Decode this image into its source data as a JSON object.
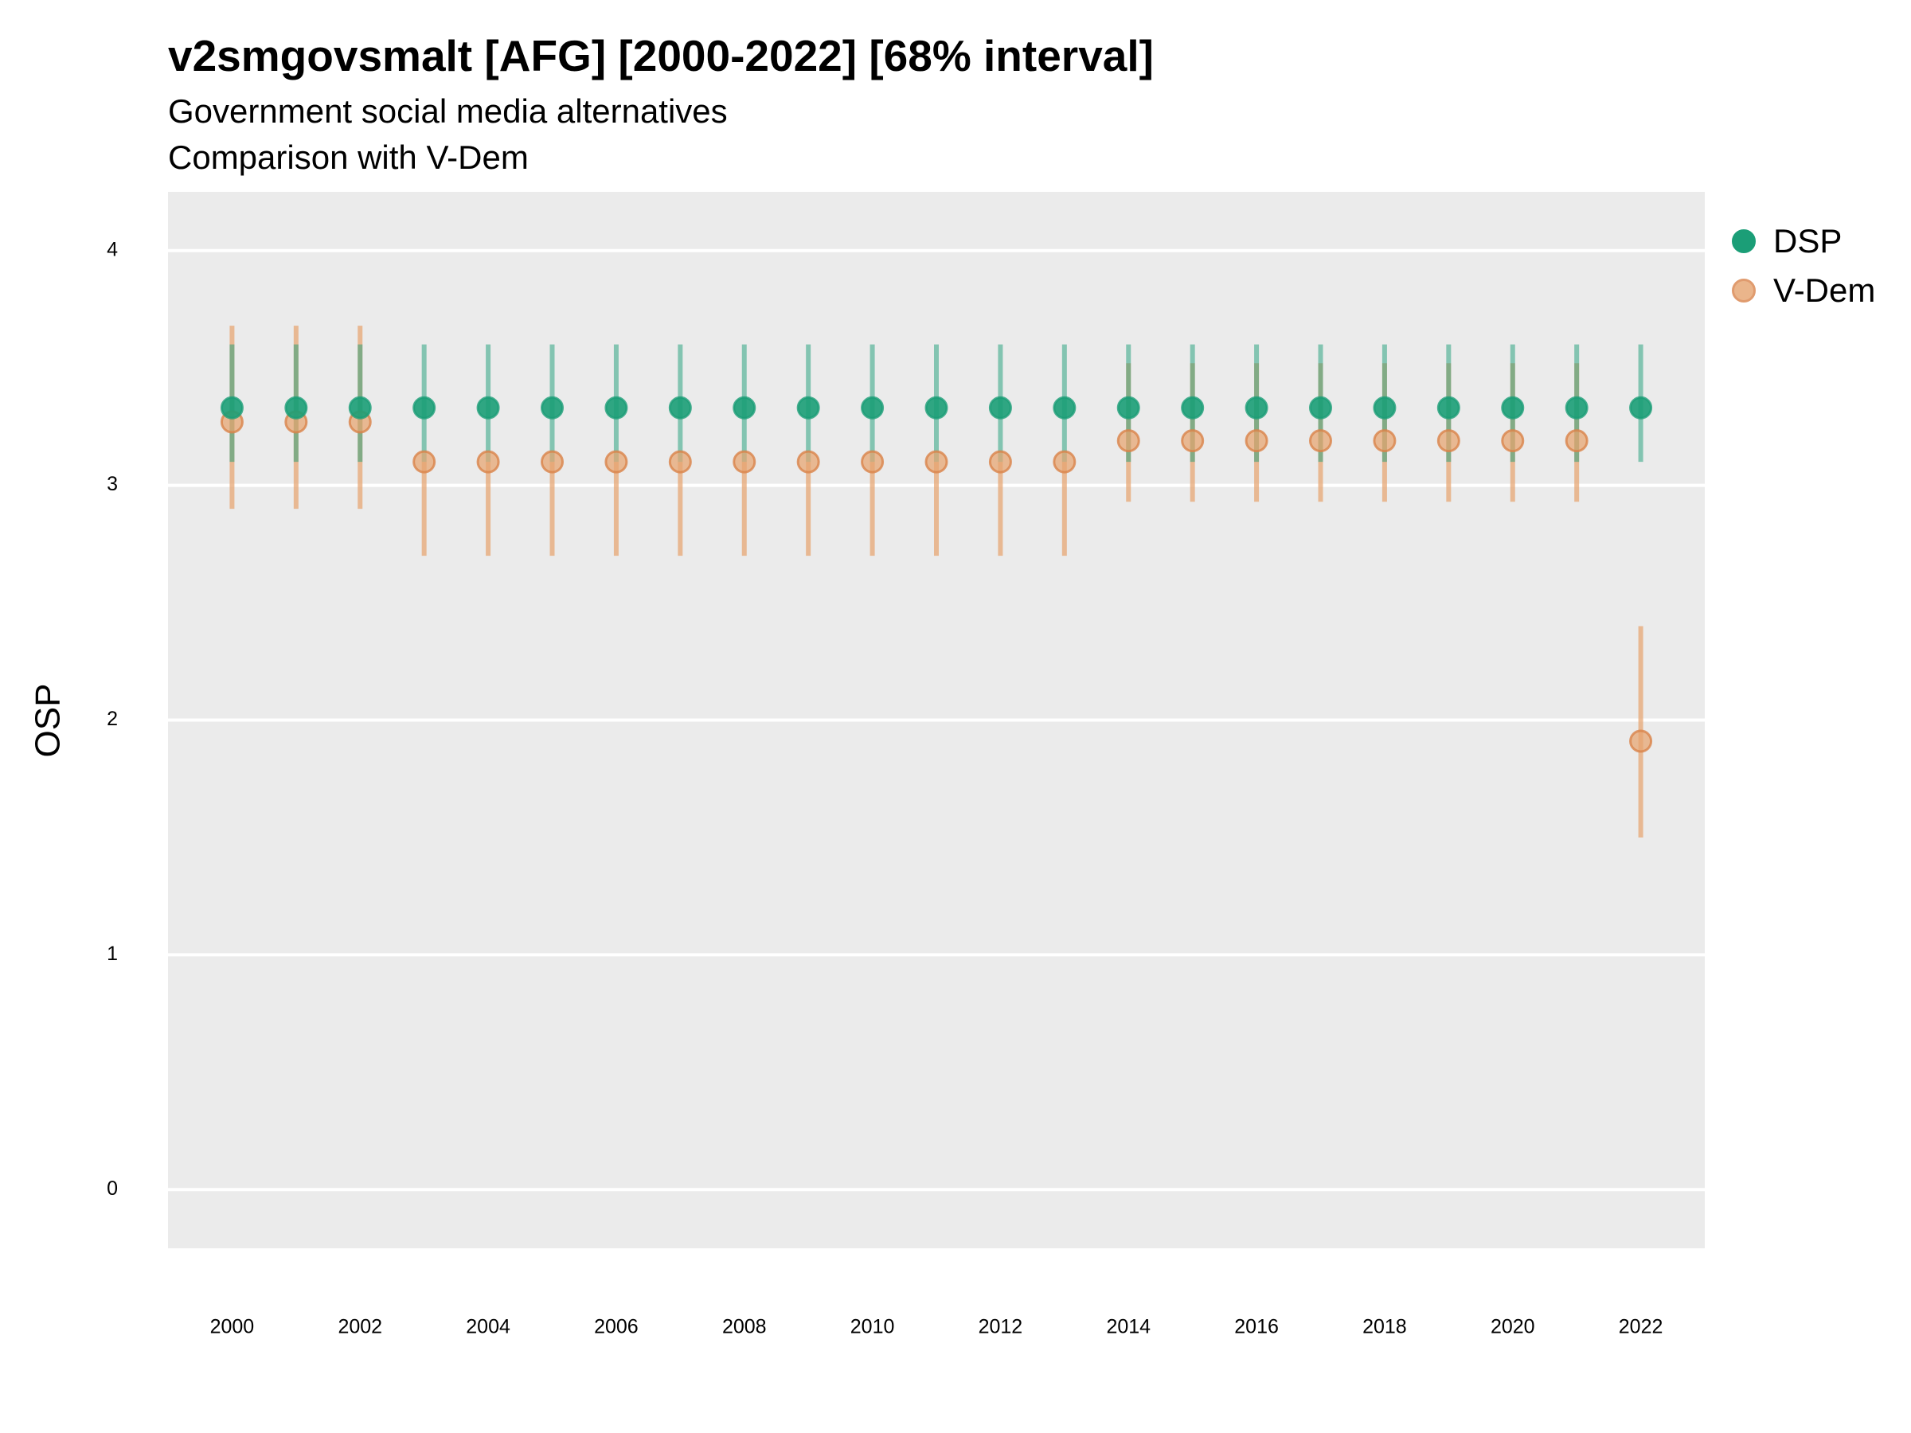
{
  "title": "v2smgovsmalt [AFG] [2000-2022] [68% interval]",
  "subtitle": "Government social media alternatives",
  "subtitle2": "Comparison with V-Dem",
  "colors": {
    "panel_bg": "#ebebeb",
    "grid": "#ffffff",
    "dsp": "#1b9e77",
    "vdem": "#e6a36f",
    "vdem_point_edge": "#d9834a"
  },
  "chart_data": {
    "type": "scatter",
    "title": "v2smgovsmalt [AFG] [2000-2022] [68% interval]",
    "subtitle": "Government social media alternatives",
    "caption": "Comparison with V-Dem",
    "xlabel": "",
    "ylabel": "OSP",
    "ylim": [
      -0.25,
      4.25
    ],
    "xlim": [
      1999,
      2023
    ],
    "yticks": [
      0,
      1,
      2,
      3,
      4
    ],
    "xticks": [
      2000,
      2002,
      2004,
      2006,
      2008,
      2010,
      2012,
      2014,
      2016,
      2018,
      2020,
      2022
    ],
    "grid": true,
    "legend_position": "right",
    "x": [
      2000,
      2001,
      2002,
      2003,
      2004,
      2005,
      2006,
      2007,
      2008,
      2009,
      2010,
      2011,
      2012,
      2013,
      2014,
      2015,
      2016,
      2017,
      2018,
      2019,
      2020,
      2021,
      2022
    ],
    "series": [
      {
        "name": "DSP",
        "y": [
          3.33,
          3.33,
          3.33,
          3.33,
          3.33,
          3.33,
          3.33,
          3.33,
          3.33,
          3.33,
          3.33,
          3.33,
          3.33,
          3.33,
          3.33,
          3.33,
          3.33,
          3.33,
          3.33,
          3.33,
          3.33,
          3.33,
          3.33
        ],
        "lower": [
          3.1,
          3.1,
          3.1,
          3.1,
          3.1,
          3.1,
          3.1,
          3.1,
          3.1,
          3.1,
          3.1,
          3.1,
          3.1,
          3.1,
          3.1,
          3.1,
          3.1,
          3.1,
          3.1,
          3.1,
          3.1,
          3.1,
          3.1
        ],
        "upper": [
          3.6,
          3.6,
          3.6,
          3.6,
          3.6,
          3.6,
          3.6,
          3.6,
          3.6,
          3.6,
          3.6,
          3.6,
          3.6,
          3.6,
          3.6,
          3.6,
          3.6,
          3.6,
          3.6,
          3.6,
          3.6,
          3.6,
          3.6
        ]
      },
      {
        "name": "V-Dem",
        "y": [
          3.27,
          3.27,
          3.27,
          3.1,
          3.1,
          3.1,
          3.1,
          3.1,
          3.1,
          3.1,
          3.1,
          3.1,
          3.1,
          3.1,
          3.19,
          3.19,
          3.19,
          3.19,
          3.19,
          3.19,
          3.19,
          3.19,
          1.91
        ],
        "lower": [
          2.9,
          2.9,
          2.9,
          2.7,
          2.7,
          2.7,
          2.7,
          2.7,
          2.7,
          2.7,
          2.7,
          2.7,
          2.7,
          2.7,
          2.93,
          2.93,
          2.93,
          2.93,
          2.93,
          2.93,
          2.93,
          2.93,
          1.5
        ],
        "upper": [
          3.68,
          3.68,
          3.68,
          3.1,
          3.1,
          3.1,
          3.1,
          3.1,
          3.1,
          3.1,
          3.1,
          3.1,
          3.1,
          3.1,
          3.52,
          3.52,
          3.52,
          3.52,
          3.52,
          3.52,
          3.52,
          3.52,
          2.4
        ]
      }
    ]
  }
}
